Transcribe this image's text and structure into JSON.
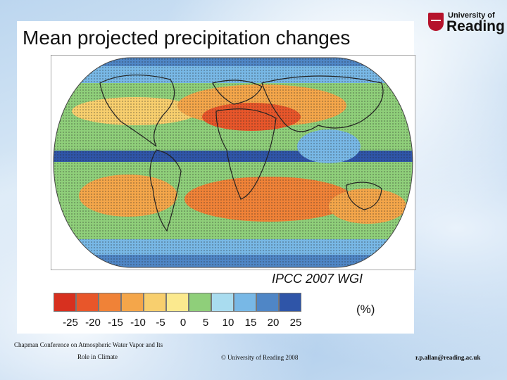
{
  "slide": {
    "title": "Mean projected precipitation changes",
    "credit": "IPCC 2007 WGI"
  },
  "logo": {
    "line1": "University of",
    "line2": "Reading"
  },
  "colorbar": {
    "unit": "(%)",
    "ticks": [
      "-25",
      "-20",
      "-15",
      "-10",
      "-5",
      "0",
      "5",
      "10",
      "15",
      "20",
      "25"
    ],
    "colors": [
      "#d7301f",
      "#e8562a",
      "#f08237",
      "#f4a64a",
      "#f8cf6e",
      "#fbe98e",
      "#8fcf7a",
      "#a9dcef",
      "#78b8e6",
      "#4f86c6",
      "#2f55a8"
    ]
  },
  "footer": {
    "conference_line1": "Chapman Conference on Atmospheric Water Vapor and Its",
    "conference_line2": "Role in Climate",
    "copyright": "© University of Reading 2008",
    "email": "r.p.allan@reading.ac.uk"
  }
}
